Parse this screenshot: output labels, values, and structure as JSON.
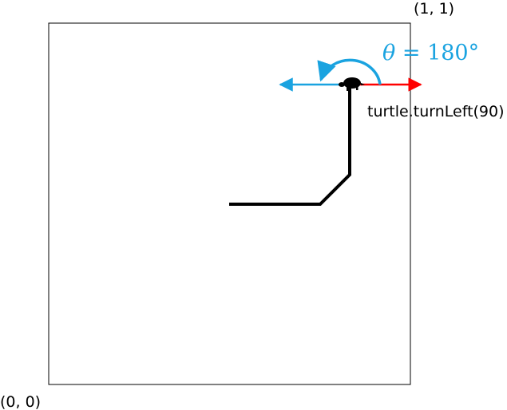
{
  "labels": {
    "top_right_corner": "(1, 1)",
    "bottom_left_corner": "(0, 0)",
    "command": "turtle.turnLeft(90)",
    "angle_symbol": "θ",
    "angle_equals": " = ",
    "angle_value": "180°"
  },
  "colors": {
    "frame": "#000000",
    "path": "#000000",
    "old_heading_arrow": "#ff0000",
    "new_heading_arrow": "#1aa3e0",
    "turn_arc": "#1aa3e0",
    "turtle": "#000000"
  },
  "icons": {
    "turtle": "turtle-icon",
    "turn_arc": "curved-arrow-icon"
  }
}
